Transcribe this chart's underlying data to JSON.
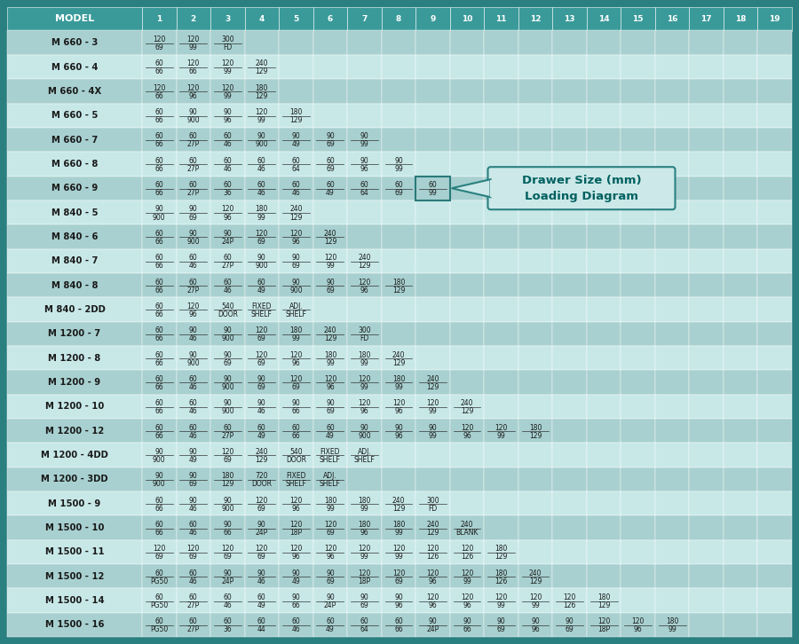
{
  "header_bg": "#3a9a9a",
  "header_text_color": "#ffffff",
  "row_bg_dark": "#a8d0d0",
  "row_bg_light": "#c8e8e8",
  "outer_bg": "#2a8080",
  "border_color": "#5ab5b5",
  "cell_line_color": "#7fcfcf",
  "model_text_color": "#1a1a1a",
  "cell_text_color": "#1a1a1a",
  "columns": [
    "MODEL",
    "1",
    "2",
    "3",
    "4",
    "5",
    "6",
    "7",
    "8",
    "9",
    "10",
    "11",
    "12",
    "13",
    "14",
    "15",
    "16",
    "17",
    "18",
    "19"
  ],
  "rows": [
    {
      "model": "M 660 - 3",
      "data": [
        "120\n69",
        "120\n99",
        "300\nFD",
        "",
        "",
        "",
        "",
        "",
        "",
        "",
        "",
        "",
        "",
        "",
        "",
        "",
        "",
        "",
        ""
      ]
    },
    {
      "model": "M 660 - 4",
      "data": [
        "60\n66",
        "120\n66",
        "120\n99",
        "240\n129",
        "",
        "",
        "",
        "",
        "",
        "",
        "",
        "",
        "",
        "",
        "",
        "",
        "",
        "",
        ""
      ]
    },
    {
      "model": "M 660 - 4X",
      "data": [
        "120\n66",
        "120\n96",
        "120\n99",
        "180\n129",
        "",
        "",
        "",
        "",
        "",
        "",
        "",
        "",
        "",
        "",
        "",
        "",
        "",
        "",
        ""
      ]
    },
    {
      "model": "M 660 - 5",
      "data": [
        "60\n66",
        "90\n900",
        "90\n96",
        "120\n99",
        "180\n129",
        "",
        "",
        "",
        "",
        "",
        "",
        "",
        "",
        "",
        "",
        "",
        "",
        "",
        ""
      ]
    },
    {
      "model": "M 660 - 7",
      "data": [
        "60\n66",
        "60\n27P",
        "60\n46",
        "90\n900",
        "90\n49",
        "90\n69",
        "90\n99",
        "",
        "",
        "",
        "",
        "",
        "",
        "",
        "",
        "",
        "",
        "",
        ""
      ]
    },
    {
      "model": "M 660 - 8",
      "data": [
        "60\n66",
        "60\n27P",
        "60\n46",
        "60\n46",
        "60\n64",
        "60\n69",
        "90\n96",
        "90\n99",
        "",
        "",
        "",
        "",
        "",
        "",
        "",
        "",
        "",
        "",
        ""
      ]
    },
    {
      "model": "M 660 - 9",
      "data": [
        "60\n66",
        "60\n27P",
        "60\n36",
        "60\n46",
        "60\n46",
        "60\n49",
        "60\n64",
        "60\n69",
        "60\n99",
        "",
        "",
        "",
        "",
        "",
        "",
        "",
        "",
        "",
        ""
      ]
    },
    {
      "model": "M 840 - 5",
      "data": [
        "90\n900",
        "90\n69",
        "120\n96",
        "180\n99",
        "240\n129",
        "",
        "",
        "",
        "",
        "",
        "",
        "",
        "",
        "",
        "",
        "",
        "",
        "",
        ""
      ]
    },
    {
      "model": "M 840 - 6",
      "data": [
        "60\n66",
        "90\n900",
        "90\n24P",
        "120\n69",
        "120\n96",
        "240\n129",
        "",
        "",
        "",
        "",
        "",
        "",
        "",
        "",
        "",
        "",
        "",
        "",
        ""
      ]
    },
    {
      "model": "M 840 - 7",
      "data": [
        "60\n66",
        "60\n46",
        "60\n27P",
        "90\n900",
        "90\n69",
        "120\n99",
        "240\n129",
        "",
        "",
        "",
        "",
        "",
        "",
        "",
        "",
        "",
        "",
        "",
        ""
      ]
    },
    {
      "model": "M 840 - 8",
      "data": [
        "60\n66",
        "60\n27P",
        "60\n46",
        "60\n49",
        "90\n900",
        "90\n69",
        "120\n96",
        "180\n129",
        "",
        "",
        "",
        "",
        "",
        "",
        "",
        "",
        "",
        "",
        ""
      ]
    },
    {
      "model": "M 840 - 2DD",
      "data": [
        "60\n66",
        "120\n96",
        "540\nDOOR",
        "FIXED\nSHELF",
        "ADJ.\nSHELF",
        "",
        "",
        "",
        "",
        "",
        "",
        "",
        "",
        "",
        "",
        "",
        "",
        "",
        ""
      ]
    },
    {
      "model": "M 1200 - 7",
      "data": [
        "60\n66",
        "90\n46",
        "90\n900",
        "120\n69",
        "180\n99",
        "240\n129",
        "300\nFD",
        "",
        "",
        "",
        "",
        "",
        "",
        "",
        "",
        "",
        "",
        "",
        ""
      ]
    },
    {
      "model": "M 1200 - 8",
      "data": [
        "60\n66",
        "90\n900",
        "90\n69",
        "120\n69",
        "120\n96",
        "180\n99",
        "180\n99",
        "240\n129",
        "",
        "",
        "",
        "",
        "",
        "",
        "",
        "",
        "",
        "",
        ""
      ]
    },
    {
      "model": "M 1200 - 9",
      "data": [
        "60\n66",
        "60\n46",
        "90\n900",
        "90\n69",
        "120\n69",
        "120\n96",
        "120\n99",
        "180\n99",
        "240\n129",
        "",
        "",
        "",
        "",
        "",
        "",
        "",
        "",
        "",
        ""
      ]
    },
    {
      "model": "M 1200 - 10",
      "data": [
        "60\n66",
        "60\n46",
        "90\n900",
        "90\n46",
        "90\n66",
        "90\n69",
        "120\n96",
        "120\n96",
        "120\n99",
        "240\n129",
        "",
        "",
        "",
        "",
        "",
        "",
        "",
        "",
        ""
      ]
    },
    {
      "model": "M 1200 - 12",
      "data": [
        "60\n66",
        "60\n46",
        "60\n27P",
        "60\n49",
        "60\n66",
        "60\n49",
        "90\n900",
        "90\n96",
        "90\n99",
        "120\n96",
        "120\n99",
        "180\n129",
        "",
        "",
        "",
        "",
        "",
        "",
        ""
      ]
    },
    {
      "model": "M 1200 - 4DD",
      "data": [
        "90\n900",
        "90\n49",
        "120\n69",
        "240\n129",
        "540\nDOOR",
        "FIXED\nSHELF",
        "ADJ.\nSHELF",
        "",
        "",
        "",
        "",
        "",
        "",
        "",
        "",
        "",
        "",
        "",
        ""
      ]
    },
    {
      "model": "M 1200 - 3DD",
      "data": [
        "90\n900",
        "90\n69",
        "180\n129",
        "720\nDOOR",
        "FIXED\nSHELF",
        "ADJ.\nSHELF",
        "",
        "",
        "",
        "",
        "",
        "",
        "",
        "",
        "",
        "",
        "",
        "",
        ""
      ]
    },
    {
      "model": "M 1500 - 9",
      "data": [
        "60\n66",
        "90\n46",
        "90\n900",
        "120\n69",
        "120\n96",
        "180\n99",
        "180\n99",
        "240\n129",
        "300\nFD",
        "",
        "",
        "",
        "",
        "",
        "",
        "",
        "",
        "",
        ""
      ]
    },
    {
      "model": "M 1500 - 10",
      "data": [
        "60\n66",
        "60\n46",
        "90\n66",
        "90\n24P",
        "120\n18P",
        "120\n69",
        "180\n96",
        "180\n99",
        "240\n129",
        "240\nBLANK",
        "",
        "",
        "",
        "",
        "",
        "",
        "",
        "",
        ""
      ]
    },
    {
      "model": "M 1500 - 11",
      "data": [
        "120\n69",
        "120\n69",
        "120\n69",
        "120\n69",
        "120\n96",
        "120\n96",
        "120\n99",
        "120\n99",
        "120\n126",
        "120\n126",
        "180\n129",
        "",
        "",
        "",
        "",
        "",
        "",
        "",
        ""
      ]
    },
    {
      "model": "M 1500 - 12",
      "data": [
        "60\nPG50",
        "60\n46",
        "90\n24P",
        "90\n46",
        "90\n49",
        "90\n69",
        "120\n18P",
        "120\n69",
        "120\n96",
        "120\n99",
        "180\n126",
        "240\n129",
        "",
        "",
        "",
        "",
        "",
        "",
        ""
      ]
    },
    {
      "model": "M 1500 - 14",
      "data": [
        "60\nPG50",
        "60\n27P",
        "60\n46",
        "60\n49",
        "90\n66",
        "90\n24P",
        "90\n69",
        "90\n96",
        "120\n96",
        "120\n96",
        "120\n99",
        "120\n99",
        "120\n126",
        "180\n129",
        "",
        "",
        "",
        "",
        ""
      ]
    },
    {
      "model": "M 1500 - 16",
      "data": [
        "60\nPG50",
        "60\n27P",
        "60\n36",
        "60\n44",
        "60\n46",
        "60\n49",
        "60\n64",
        "60\n66",
        "90\n24P",
        "90\n66",
        "90\n69",
        "90\n96",
        "90\n69",
        "120\n18P",
        "120\n96",
        "180\n99",
        "",
        "",
        ""
      ]
    }
  ],
  "annotation_row": 6,
  "annotation_col": 9,
  "ann_box_text1": "Drawer Size (mm)",
  "ann_box_text2": "Loading Diagram"
}
